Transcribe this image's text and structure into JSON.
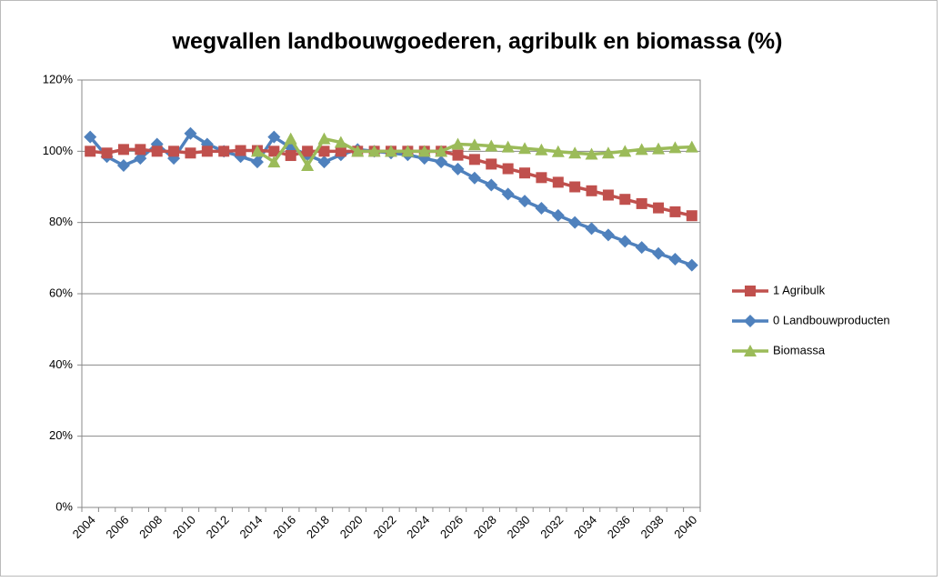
{
  "chart_data": {
    "type": "line",
    "title": "wegvallen landbouwgoederen, agribulk en biomassa (%)",
    "categories": [
      "2004",
      null,
      "2006",
      null,
      "2008",
      null,
      "2010",
      null,
      "2012",
      null,
      "2014",
      null,
      "2016",
      null,
      "2018",
      null,
      "2020",
      null,
      "2022",
      null,
      "2024",
      null,
      "2026",
      null,
      "2028",
      null,
      "2030",
      null,
      "2032",
      null,
      "2034",
      null,
      "2036",
      null,
      "2038",
      null,
      "2040"
    ],
    "series": [
      {
        "name": "1 Agribulk",
        "color": "#c0504d",
        "marker": "square",
        "values": [
          100,
          99.5,
          100.5,
          100.5,
          100,
          100,
          99.5,
          100,
          100,
          100.2,
          100.2,
          100,
          98.8,
          100,
          100,
          100,
          100,
          100,
          100,
          100,
          100,
          100,
          98.9,
          97.7,
          96.4,
          95.1,
          93.9,
          92.6,
          91.3,
          90,
          88.9,
          87.7,
          86.5,
          85.3,
          84.1,
          83,
          81.9
        ]
      },
      {
        "name": "0 Landbouwproducten",
        "color": "#4f81bd",
        "marker": "diamond",
        "values": [
          104,
          98.5,
          96,
          98,
          102,
          98,
          105,
          102,
          100,
          98.5,
          97,
          104,
          101,
          99,
          97,
          99,
          100.5,
          100,
          99.5,
          99,
          98,
          97,
          95,
          92.5,
          90.5,
          88,
          86,
          84,
          82,
          80,
          78.3,
          76.5,
          74.7,
          73,
          71.3,
          69.7,
          68
        ]
      },
      {
        "name": "Biomassa",
        "color": "#9bbb59",
        "marker": "triangle",
        "values": [
          null,
          null,
          null,
          null,
          null,
          null,
          null,
          null,
          null,
          null,
          100,
          97,
          103.5,
          96,
          103.5,
          102.5,
          100,
          100,
          100,
          100,
          100,
          100,
          102,
          101.8,
          101.5,
          101.2,
          100.8,
          100.4,
          99.9,
          99.5,
          99.2,
          99.5,
          100,
          100.5,
          100.7,
          101,
          101.2
        ]
      }
    ],
    "ylim": [
      0,
      120
    ],
    "yticks": [
      {
        "value": 0,
        "label": "0%"
      },
      {
        "value": 20,
        "label": "20%"
      },
      {
        "value": 40,
        "label": "40%"
      },
      {
        "value": 60,
        "label": "60%"
      },
      {
        "value": 80,
        "label": "80%"
      },
      {
        "value": 100,
        "label": "100%"
      },
      {
        "value": 120,
        "label": "120%"
      }
    ],
    "grid": true,
    "legend": "right"
  }
}
